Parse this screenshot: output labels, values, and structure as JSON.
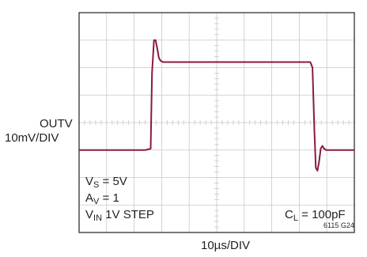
{
  "chart_data": {
    "type": "line",
    "title": "",
    "xlabel": "10µs/DIV",
    "ylabel_line1": "OUTV",
    "ylabel_line2": "10mV/DIV",
    "grid": true,
    "x_divisions": 10,
    "y_divisions": 8,
    "xlim": [
      0,
      10
    ],
    "ylim": [
      -4,
      4
    ],
    "x_unit": "div (10µs/div)",
    "y_unit": "div (10mV/div)",
    "trace_color": "#8b1a3e",
    "series": [
      {
        "x": [
          0,
          2.4,
          2.6,
          2.65,
          2.72,
          2.78,
          2.84,
          2.9,
          2.96,
          3.05,
          3.15,
          8.4,
          8.48,
          8.55,
          8.6,
          8.66,
          8.72,
          8.78,
          8.84,
          8.9,
          8.98,
          10
        ],
        "y": [
          -1.0,
          -1.0,
          -0.95,
          1.8,
          3.0,
          3.0,
          2.7,
          2.35,
          2.25,
          2.2,
          2.2,
          2.2,
          2.0,
          -0.3,
          -1.65,
          -1.75,
          -1.4,
          -0.95,
          -0.85,
          -0.95,
          -1.0,
          -1.0
        ]
      }
    ],
    "annotations": {
      "vs": {
        "main": "V",
        "sub": "S",
        "rest": " = 5V"
      },
      "av": {
        "main": "A",
        "sub": "V",
        "rest": " = 1"
      },
      "vin": {
        "main": "V",
        "sub": "IN",
        "rest": " 1V STEP"
      },
      "cl": {
        "main": "C",
        "sub": "L",
        "rest": " = 100pF"
      }
    },
    "figure_id": "6115 G24"
  }
}
